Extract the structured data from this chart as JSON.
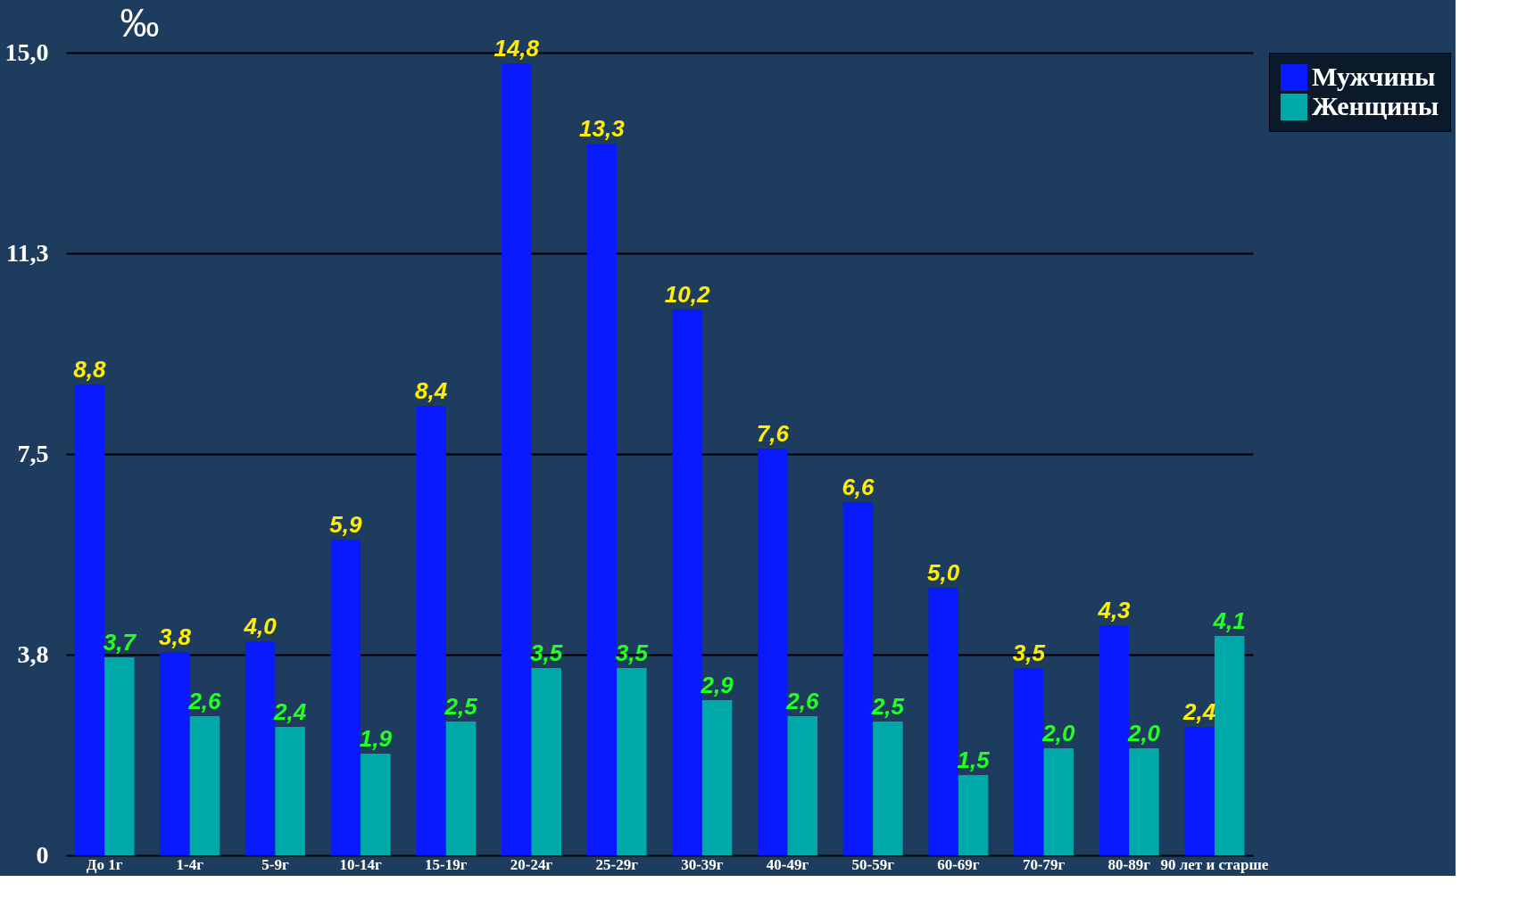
{
  "chart_data": {
    "type": "bar",
    "ylabel": "‰",
    "categories": [
      "До 1г",
      "1-4г",
      "5-9г",
      "10-14г",
      "15-19г",
      "20-24г",
      "25-29г",
      "30-39г",
      "40-49г",
      "50-59г",
      "60-69г",
      "70-79г",
      "80-89г",
      "90 лет и старше"
    ],
    "series": [
      {
        "name": "Мужчины",
        "color": "#0a1aff",
        "values": [
          8.8,
          3.8,
          4.0,
          5.9,
          8.4,
          14.8,
          13.3,
          10.2,
          7.6,
          6.6,
          5.0,
          3.5,
          4.3,
          2.4
        ],
        "value_labels": [
          "8,8",
          "3,8",
          "4,0",
          "5,9",
          "8,4",
          "14,8",
          "13,3",
          "10,2",
          "7,6",
          "6,6",
          "5,0",
          "3,5",
          "4,3",
          "2,4"
        ]
      },
      {
        "name": "Женщины",
        "color": "#00a8a8",
        "values": [
          3.7,
          2.6,
          2.4,
          1.9,
          2.5,
          3.5,
          3.5,
          2.9,
          2.6,
          2.5,
          1.5,
          2.0,
          2.0,
          4.1
        ],
        "value_labels": [
          "3,7",
          "2,6",
          "2,4",
          "1,9",
          "2,5",
          "3,5",
          "3,5",
          "2,9",
          "2,6",
          "2,5",
          "1,5",
          "2,0",
          "2,0",
          "4,1"
        ]
      }
    ],
    "ylim": [
      0,
      15
    ],
    "yticks": [
      0,
      {
        "value": 3.75,
        "label": "3,8"
      },
      {
        "value": 7.5,
        "label": "7,5"
      },
      {
        "value": 11.25,
        "label": "11,3"
      },
      {
        "value": 15,
        "label": "15,0"
      }
    ],
    "grid": "y",
    "legend": "top right"
  }
}
